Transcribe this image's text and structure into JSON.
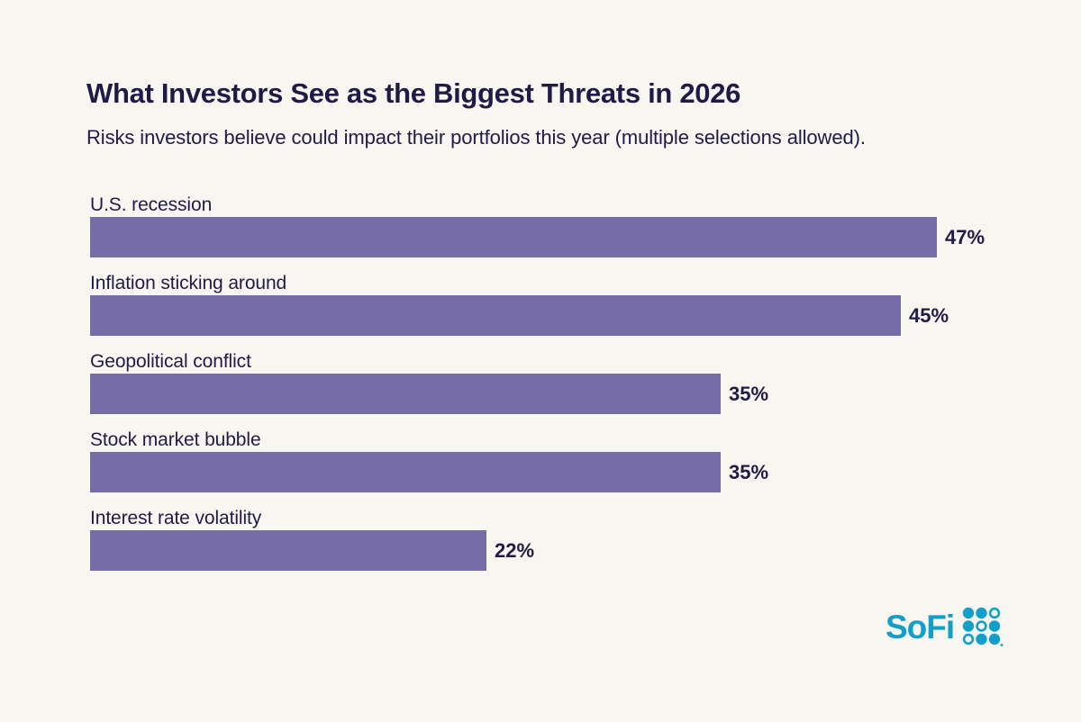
{
  "header": {
    "title": "What Investors See as the Biggest Threats in 2026",
    "subtitle": "Risks investors believe could impact their portfolios this year (multiple selections allowed)."
  },
  "chart_data": {
    "type": "bar",
    "orientation": "horizontal",
    "title": "What Investors See as the Biggest Threats in 2026",
    "subtitle": "Risks investors believe could impact their portfolios this year (multiple selections allowed).",
    "categories": [
      "U.S. recession",
      "Inflation sticking around",
      "Geopolitical conflict",
      "Stock market bubble",
      "Interest rate volatility"
    ],
    "values": [
      47,
      45,
      35,
      35,
      22
    ],
    "value_suffix": "%",
    "xlim": [
      0,
      50
    ],
    "grid": false,
    "legend": false,
    "bar_color": "#766CA8",
    "items": [
      {
        "label": "U.S. recession",
        "value": 47,
        "display": "47%"
      },
      {
        "label": "Inflation sticking around",
        "value": 45,
        "display": "45%"
      },
      {
        "label": "Geopolitical conflict",
        "value": 35,
        "display": "35%"
      },
      {
        "label": "Stock market bubble",
        "value": 35,
        "display": "35%"
      },
      {
        "label": "Interest rate volatility",
        "value": 22,
        "display": "22%"
      }
    ]
  },
  "branding": {
    "logo_text": "SoFi"
  },
  "colors": {
    "bg": "#F8F6F1",
    "ink": "#221A46",
    "bar": "#766CA8",
    "accent": "#149FC9"
  }
}
